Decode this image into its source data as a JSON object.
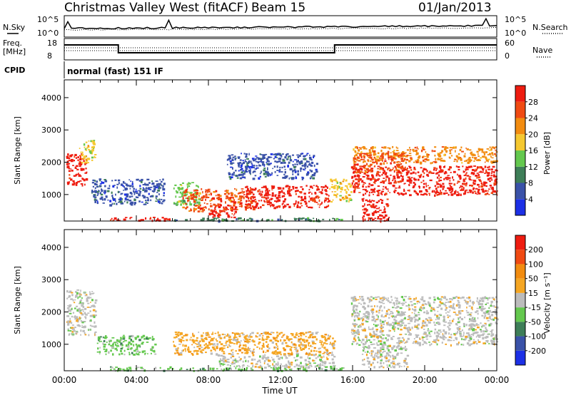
{
  "header": {
    "title": "Christmas Valley West (fitACF)",
    "beam": "Beam 15",
    "date": "01/Jan/2013"
  },
  "strips": {
    "nsky_label": "N.Sky",
    "nsky_ticks": [
      "10^5",
      "10^0"
    ],
    "nsearch_label": "N.Search",
    "nsearch_ticks": [
      "10^5",
      "10^0"
    ],
    "freq_label_1": "Freq.",
    "freq_label_2": "[MHz]",
    "freq_ticks": [
      "18",
      "8"
    ],
    "nave_label": "Nave",
    "nave_ticks": [
      "60",
      "0"
    ],
    "cpid_label": "CPID",
    "cpid_text": "normal (fast) 151 IF"
  },
  "chart_data": [
    {
      "type": "heatmap",
      "name": "power",
      "ylabel": "Slant Range [km]",
      "xlabel": "",
      "yticks": [
        "1000",
        "2000",
        "3000",
        "4000"
      ],
      "ylim": [
        180,
        4550
      ],
      "xlim": [
        0,
        24
      ],
      "colorbar_label": "Power [dB]",
      "colorbar_ticks": [
        "4",
        "8",
        "12",
        "16",
        "20",
        "24",
        "28"
      ],
      "colorbar_colors": [
        "#1c30e6",
        "#3a52a8",
        "#3e7e58",
        "#64c84e",
        "#f5c830",
        "#f28c10",
        "#f04a12",
        "#ee1c10"
      ],
      "echo_regions": [
        {
          "t0": 0.1,
          "t1": 1.2,
          "r0": 1300,
          "r1": 2300,
          "level": 7
        },
        {
          "t0": 0.8,
          "t1": 1.7,
          "r0": 2000,
          "r1": 2700,
          "level": 4
        },
        {
          "t0": 1.5,
          "t1": 5.5,
          "r0": 700,
          "r1": 1500,
          "level": 1
        },
        {
          "t0": 2.5,
          "t1": 6.0,
          "r0": 200,
          "r1": 320,
          "level": 7
        },
        {
          "t0": 6.0,
          "t1": 7.5,
          "r0": 700,
          "r1": 1400,
          "level": 3
        },
        {
          "t0": 6.5,
          "t1": 10.5,
          "r0": 500,
          "r1": 1200,
          "level": 6
        },
        {
          "t0": 8.0,
          "t1": 9.5,
          "r0": 300,
          "r1": 700,
          "level": 7
        },
        {
          "t0": 10.0,
          "t1": 14.7,
          "r0": 600,
          "r1": 1300,
          "level": 7
        },
        {
          "t0": 9.0,
          "t1": 14.0,
          "r0": 1500,
          "r1": 2300,
          "level": 1
        },
        {
          "t0": 6.0,
          "t1": 15.5,
          "r0": 200,
          "r1": 300,
          "level": 2
        },
        {
          "t0": 14.7,
          "t1": 15.9,
          "r0": 800,
          "r1": 1500,
          "level": 4
        },
        {
          "t0": 15.9,
          "t1": 24.0,
          "r0": 1000,
          "r1": 1900,
          "level": 7
        },
        {
          "t0": 16.0,
          "t1": 24.0,
          "r0": 2000,
          "r1": 2500,
          "level": 5
        },
        {
          "t0": 16.5,
          "t1": 18.0,
          "r0": 200,
          "r1": 900,
          "level": 7
        },
        {
          "t0": 16.0,
          "t1": 19.0,
          "r0": 1700,
          "r1": 2300,
          "level": 6
        }
      ]
    },
    {
      "type": "heatmap",
      "name": "velocity",
      "ylabel": "Slant Range [km]",
      "xlabel": "Time UT",
      "xticks": [
        "00:00",
        "04:00",
        "08:00",
        "12:00",
        "16:00",
        "20:00",
        "00:00"
      ],
      "yticks": [
        "1000",
        "2000",
        "3000",
        "4000"
      ],
      "ylim": [
        180,
        4550
      ],
      "xlim": [
        0,
        24
      ],
      "colorbar_label": "Velocity [m s⁻¹]",
      "colorbar_ticks": [
        "200",
        "100",
        "50",
        "15",
        "-15",
        "-50",
        "-100",
        "-200"
      ],
      "colorbar_colors": [
        "#1c30e6",
        "#3a52a8",
        "#3e7e58",
        "#64c84e",
        "#bcbcbc",
        "#f5a623",
        "#f28c10",
        "#f04a12",
        "#ee1c10"
      ],
      "echo_regions": [
        {
          "t0": 0.1,
          "t1": 1.7,
          "r0": 1300,
          "r1": 2700,
          "level": 4
        },
        {
          "t0": 1.8,
          "t1": 5.0,
          "r0": 700,
          "r1": 1300,
          "level": 3
        },
        {
          "t0": 2.5,
          "t1": 6.0,
          "r0": 200,
          "r1": 320,
          "level": 3
        },
        {
          "t0": 6.0,
          "t1": 15.0,
          "r0": 700,
          "r1": 1400,
          "level": 5
        },
        {
          "t0": 8.5,
          "t1": 15.0,
          "r0": 300,
          "r1": 700,
          "level": 4
        },
        {
          "t0": 6.0,
          "t1": 15.5,
          "r0": 200,
          "r1": 300,
          "level": 3
        },
        {
          "t0": 15.9,
          "t1": 24.0,
          "r0": 1000,
          "r1": 2500,
          "level": 4
        },
        {
          "t0": 16.5,
          "t1": 19.0,
          "r0": 300,
          "r1": 1000,
          "level": 4
        }
      ]
    }
  ]
}
